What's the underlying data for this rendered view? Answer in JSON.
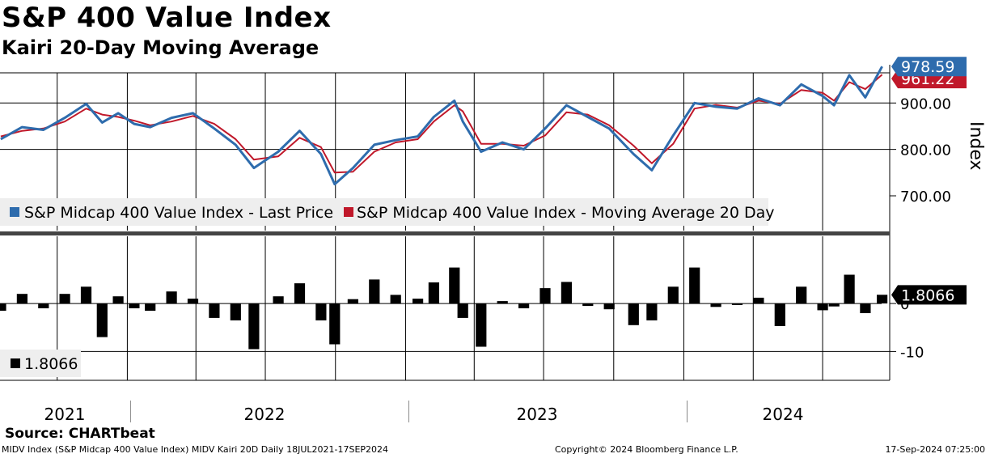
{
  "title": "S&P 400 Value Index",
  "subtitle": "Kairi 20-Day Moving Average",
  "source": "Source: CHARTbeat",
  "footer": {
    "left": "MIDV Index (S&P Midcap 400 Value Index) MIDV Kairi 20D  Daily 18JUL2021-17SEP2024",
    "center": "Copyright© 2024 Bloomberg Finance L.P.",
    "right": "17-Sep-2024 07:25:00"
  },
  "colors": {
    "price": "#2e6cad",
    "ma": "#c0182a",
    "kairi": "#000000",
    "grid": "#000000"
  },
  "chart_data": [
    {
      "type": "line",
      "ylabel": "Index",
      "ylim": [
        625,
        965
      ],
      "yticks": [
        "700.00",
        "800.00",
        "900.00"
      ],
      "grid": true,
      "legend": "bottom-left",
      "last_price_label": "978.59",
      "last_ma_label": "961.22",
      "series": [
        {
          "name": "S&P Midcap 400 Value Index - Last Price",
          "x": [
            "2021-07-19",
            "2021-08-16",
            "2021-09-13",
            "2021-10-11",
            "2021-11-08",
            "2021-11-29",
            "2021-12-20",
            "2022-01-10",
            "2022-01-31",
            "2022-02-28",
            "2022-03-28",
            "2022-04-25",
            "2022-05-23",
            "2022-06-16",
            "2022-07-18",
            "2022-08-15",
            "2022-09-12",
            "2022-09-30",
            "2022-10-24",
            "2022-11-21",
            "2022-12-19",
            "2023-01-17",
            "2023-02-07",
            "2023-03-06",
            "2023-03-17",
            "2023-04-10",
            "2023-05-08",
            "2023-06-05",
            "2023-07-03",
            "2023-07-31",
            "2023-08-28",
            "2023-09-25",
            "2023-10-27",
            "2023-11-20",
            "2023-12-18",
            "2024-01-15",
            "2024-02-12",
            "2024-03-11",
            "2024-04-08",
            "2024-05-06",
            "2024-06-03",
            "2024-07-01",
            "2024-07-16",
            "2024-08-05",
            "2024-08-26",
            "2024-09-17"
          ],
          "values": [
            822,
            848,
            842,
            868,
            898,
            858,
            878,
            855,
            848,
            868,
            878,
            845,
            810,
            760,
            795,
            840,
            790,
            725,
            760,
            810,
            820,
            828,
            870,
            905,
            860,
            795,
            815,
            800,
            845,
            895,
            870,
            845,
            790,
            755,
            830,
            900,
            892,
            888,
            910,
            895,
            940,
            915,
            895,
            960,
            912,
            978.59
          ]
        },
        {
          "name": "S&P Midcap 400 Value Index - Moving Average 20 Day",
          "x": [
            "2021-07-19",
            "2021-08-16",
            "2021-09-13",
            "2021-10-11",
            "2021-11-08",
            "2021-11-29",
            "2021-12-20",
            "2022-01-10",
            "2022-01-31",
            "2022-02-28",
            "2022-03-28",
            "2022-04-25",
            "2022-05-23",
            "2022-06-16",
            "2022-07-18",
            "2022-08-15",
            "2022-09-12",
            "2022-09-30",
            "2022-10-24",
            "2022-11-21",
            "2022-12-19",
            "2023-01-17",
            "2023-02-07",
            "2023-03-06",
            "2023-03-17",
            "2023-04-10",
            "2023-05-08",
            "2023-06-05",
            "2023-07-03",
            "2023-07-31",
            "2023-08-28",
            "2023-09-25",
            "2023-10-27",
            "2023-11-20",
            "2023-12-18",
            "2024-01-15",
            "2024-02-12",
            "2024-03-11",
            "2024-04-08",
            "2024-05-06",
            "2024-06-03",
            "2024-07-01",
            "2024-07-16",
            "2024-08-05",
            "2024-08-26",
            "2024-09-17"
          ],
          "values": [
            828,
            840,
            845,
            860,
            888,
            875,
            870,
            862,
            852,
            860,
            872,
            855,
            822,
            778,
            785,
            825,
            805,
            750,
            752,
            795,
            815,
            822,
            860,
            895,
            882,
            812,
            812,
            808,
            830,
            880,
            875,
            852,
            808,
            770,
            812,
            888,
            896,
            890,
            905,
            898,
            928,
            922,
            905,
            945,
            930,
            961.22
          ]
        }
      ]
    },
    {
      "type": "bar",
      "ylim": [
        -16,
        14
      ],
      "yticks": [
        "-10",
        "0"
      ],
      "grid": true,
      "legend": "bottom-left",
      "last_value_label": "1.8066",
      "series": [
        {
          "name": "1.8066",
          "x": [
            "2021-07-19",
            "2021-08-16",
            "2021-09-13",
            "2021-10-11",
            "2021-11-08",
            "2021-11-29",
            "2021-12-20",
            "2022-01-10",
            "2022-01-31",
            "2022-02-28",
            "2022-03-28",
            "2022-04-25",
            "2022-05-23",
            "2022-06-16",
            "2022-07-18",
            "2022-08-15",
            "2022-09-12",
            "2022-09-30",
            "2022-10-24",
            "2022-11-21",
            "2022-12-19",
            "2023-01-17",
            "2023-02-07",
            "2023-03-06",
            "2023-03-17",
            "2023-04-10",
            "2023-05-08",
            "2023-06-05",
            "2023-07-03",
            "2023-07-31",
            "2023-08-28",
            "2023-09-25",
            "2023-10-27",
            "2023-11-20",
            "2023-12-18",
            "2024-01-15",
            "2024-02-12",
            "2024-03-11",
            "2024-04-08",
            "2024-05-06",
            "2024-06-03",
            "2024-07-01",
            "2024-07-16",
            "2024-08-05",
            "2024-08-26",
            "2024-09-17"
          ],
          "values": [
            -1.5,
            2,
            -1,
            2,
            3.5,
            -7,
            1.5,
            -1,
            -1.5,
            2.5,
            1,
            -3,
            -3.5,
            -9.5,
            1.5,
            4.2,
            -3.5,
            -8.5,
            0.9,
            5,
            1.8,
            1,
            4.4,
            7.5,
            -3,
            -9,
            0.5,
            -1,
            3.2,
            4.5,
            -0.5,
            -1.2,
            -4.5,
            -3.5,
            3.5,
            7.5,
            -0.7,
            -0.3,
            1.2,
            -4.7,
            3.5,
            -1.4,
            -0.6,
            6,
            -2,
            1.8066
          ]
        }
      ]
    }
  ],
  "xaxis": {
    "years": [
      "2021",
      "2022",
      "2023",
      "2024"
    ]
  }
}
